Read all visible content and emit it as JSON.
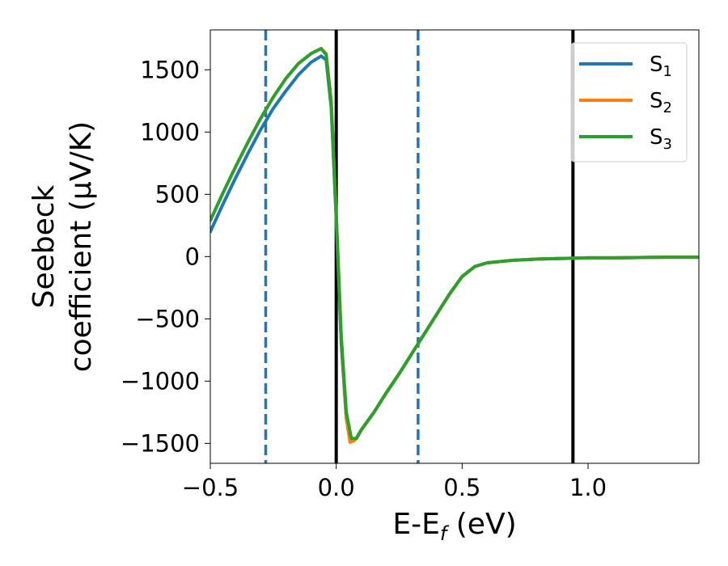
{
  "chart_data": {
    "type": "line",
    "xlabel": "E-E",
    "xlabel_sub": "f",
    "xlabel_unit": " (eV)",
    "ylabel_line1": "Seebeck",
    "ylabel_line2": "coefficient  (μV/K)",
    "xlim": [
      -0.5,
      1.44
    ],
    "ylim": [
      -1660,
      1820
    ],
    "xticks": [
      -0.5,
      0.0,
      0.5,
      1.0
    ],
    "xtick_labels": [
      "−0.5",
      "0.0",
      "0.5",
      "1.0"
    ],
    "yticks": [
      -1500,
      -1000,
      -500,
      0,
      500,
      1000,
      1500
    ],
    "ytick_labels": [
      "−1500",
      "−1000",
      "−500",
      "0",
      "500",
      "1000",
      "1500"
    ],
    "grid": false,
    "legend_position": "top-right",
    "vlines": [
      {
        "x": 0.0,
        "style": "solid",
        "color": "#000000"
      },
      {
        "x": 0.94,
        "style": "solid",
        "color": "#000000"
      },
      {
        "x": -0.28,
        "style": "dashed",
        "color": "#1f77b4"
      },
      {
        "x": 0.325,
        "style": "dashed",
        "color": "#1f77b4"
      }
    ],
    "series": [
      {
        "name": "S",
        "name_sub": "1",
        "color": "#1f77b4",
        "x": [
          -0.5,
          -0.45,
          -0.4,
          -0.35,
          -0.3,
          -0.25,
          -0.2,
          -0.15,
          -0.1,
          -0.06,
          -0.04,
          -0.02,
          0.0,
          0.02,
          0.04,
          0.06,
          0.08,
          0.1,
          0.15,
          0.2,
          0.25,
          0.3,
          0.35,
          0.4,
          0.45,
          0.5,
          0.55,
          0.6,
          0.7,
          0.8,
          0.9,
          1.0,
          1.1,
          1.2,
          1.3,
          1.44
        ],
        "y": [
          200,
          420,
          630,
          830,
          1020,
          1190,
          1330,
          1460,
          1560,
          1610,
          1580,
          1200,
          300,
          -700,
          -1300,
          -1470,
          -1460,
          -1390,
          -1250,
          -1090,
          -940,
          -780,
          -620,
          -460,
          -300,
          -160,
          -80,
          -50,
          -30,
          -20,
          -15,
          -10,
          -10,
          -8,
          -5,
          -5
        ]
      },
      {
        "name": "S",
        "name_sub": "2",
        "color": "#ff7f0e",
        "x": [
          -0.5,
          -0.45,
          -0.4,
          -0.35,
          -0.3,
          -0.25,
          -0.2,
          -0.15,
          -0.1,
          -0.06,
          -0.04,
          -0.02,
          0.0,
          0.02,
          0.04,
          0.055,
          0.07,
          0.08,
          0.1,
          0.15,
          0.2,
          0.25,
          0.3,
          0.35,
          0.4,
          0.45,
          0.5,
          0.55,
          0.6,
          0.7,
          0.8,
          0.9,
          1.0,
          1.1,
          1.2,
          1.3,
          1.44
        ],
        "y": [
          290,
          510,
          720,
          920,
          1110,
          1280,
          1430,
          1550,
          1630,
          1670,
          1630,
          1250,
          350,
          -650,
          -1300,
          -1490,
          -1480,
          -1460,
          -1390,
          -1250,
          -1090,
          -940,
          -780,
          -620,
          -460,
          -300,
          -160,
          -80,
          -50,
          -30,
          -20,
          -15,
          -10,
          -10,
          -8,
          -5,
          -5
        ]
      },
      {
        "name": "S",
        "name_sub": "3",
        "color": "#2ca02c",
        "x": [
          -0.5,
          -0.45,
          -0.4,
          -0.35,
          -0.3,
          -0.25,
          -0.2,
          -0.15,
          -0.1,
          -0.06,
          -0.04,
          -0.02,
          0.0,
          0.02,
          0.04,
          0.06,
          0.08,
          0.1,
          0.15,
          0.2,
          0.25,
          0.3,
          0.35,
          0.4,
          0.45,
          0.5,
          0.55,
          0.6,
          0.7,
          0.8,
          0.9,
          1.0,
          1.1,
          1.2,
          1.3,
          1.44
        ],
        "y": [
          290,
          510,
          720,
          920,
          1110,
          1280,
          1430,
          1550,
          1630,
          1670,
          1620,
          1230,
          330,
          -650,
          -1250,
          -1460,
          -1460,
          -1390,
          -1250,
          -1090,
          -940,
          -780,
          -620,
          -460,
          -300,
          -160,
          -80,
          -50,
          -30,
          -20,
          -15,
          -10,
          -10,
          -8,
          -5,
          -5
        ]
      }
    ]
  }
}
